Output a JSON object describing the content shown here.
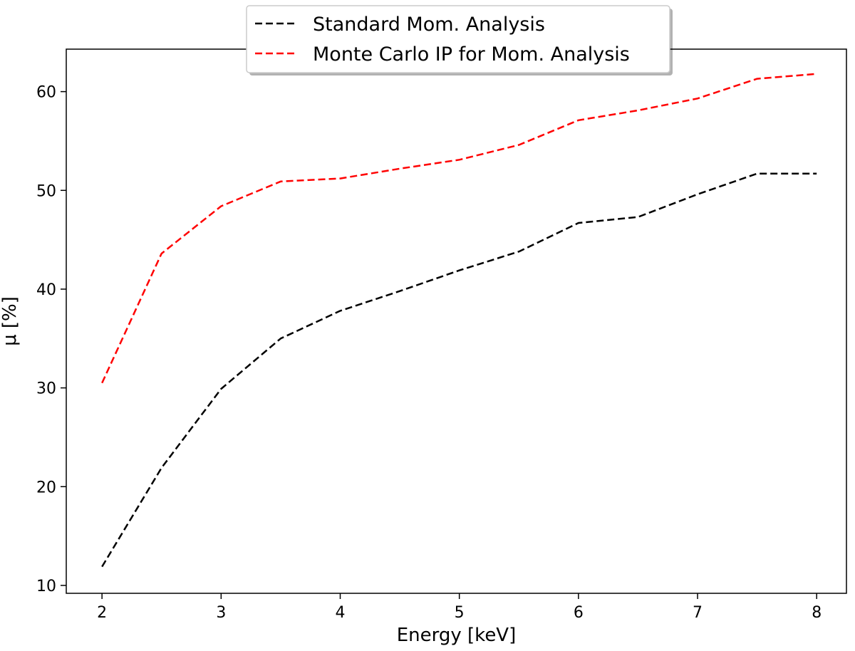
{
  "chart_data": {
    "type": "line",
    "title": "",
    "xlabel": "Energy [keV]",
    "ylabel": "μ [%]",
    "xlim": [
      1.7,
      8.25
    ],
    "ylim": [
      9.2,
      64.3
    ],
    "xticks": [
      2,
      3,
      4,
      5,
      6,
      7,
      8
    ],
    "yticks": [
      10,
      20,
      30,
      40,
      50,
      60
    ],
    "grid": false,
    "legend_position": "top-center",
    "x": [
      2,
      2.5,
      3,
      3.5,
      4,
      4.5,
      5,
      5.5,
      6,
      6.5,
      7,
      7.5,
      8
    ],
    "series": [
      {
        "name": "Standard Mom. Analysis",
        "color": "#000000",
        "line_style": "dashed",
        "values": [
          11.9,
          21.9,
          29.9,
          35.0,
          37.8,
          39.8,
          41.9,
          43.8,
          46.7,
          47.3,
          49.6,
          51.7,
          51.7
        ]
      },
      {
        "name": "Monte Carlo IP for Mom. Analysis",
        "color": "#ff0000",
        "line_style": "dashed",
        "values": [
          30.5,
          43.6,
          48.4,
          50.9,
          51.2,
          52.2,
          53.1,
          54.6,
          57.1,
          58.1,
          59.3,
          61.3,
          61.8
        ]
      }
    ]
  }
}
